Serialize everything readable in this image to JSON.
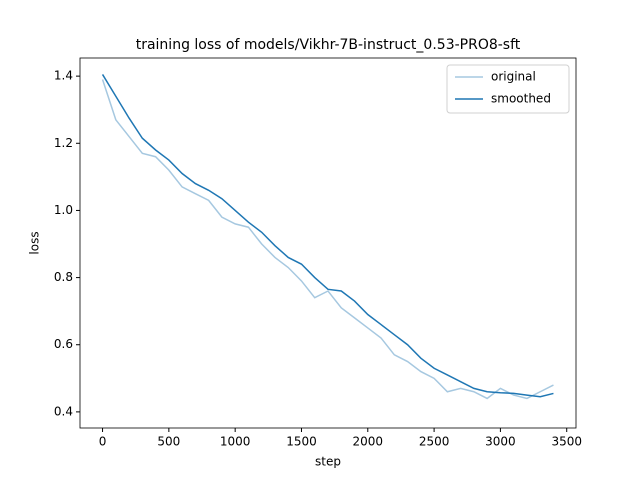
{
  "chart_data": {
    "type": "line",
    "title": "training loss of models/Vikhr-7B-instruct_0.53-PRO8-sft",
    "xlabel": "step",
    "ylabel": "loss",
    "x": [
      0,
      100,
      200,
      300,
      400,
      500,
      600,
      700,
      800,
      900,
      1000,
      1100,
      1200,
      1300,
      1400,
      1500,
      1600,
      1700,
      1800,
      1900,
      2000,
      2100,
      2200,
      2300,
      2400,
      2500,
      2600,
      2700,
      2800,
      2900,
      3000,
      3100,
      3200,
      3300,
      3400
    ],
    "series": [
      {
        "name": "original",
        "color": "#a6c8e0",
        "values": [
          1.39,
          1.27,
          1.22,
          1.17,
          1.16,
          1.12,
          1.07,
          1.05,
          1.03,
          0.98,
          0.96,
          0.95,
          0.9,
          0.86,
          0.83,
          0.79,
          0.74,
          0.76,
          0.71,
          0.68,
          0.65,
          0.62,
          0.57,
          0.55,
          0.52,
          0.5,
          0.46,
          0.47,
          0.46,
          0.44,
          0.47,
          0.45,
          0.44,
          0.46,
          0.48
        ]
      },
      {
        "name": "smoothed",
        "color": "#1f77b4",
        "values": [
          1.405,
          1.34,
          1.275,
          1.215,
          1.18,
          1.15,
          1.11,
          1.08,
          1.06,
          1.035,
          1.0,
          0.965,
          0.935,
          0.895,
          0.86,
          0.84,
          0.8,
          0.765,
          0.76,
          0.73,
          0.69,
          0.66,
          0.63,
          0.6,
          0.56,
          0.53,
          0.51,
          0.49,
          0.47,
          0.46,
          0.457,
          0.455,
          0.45,
          0.445,
          0.455
        ]
      }
    ],
    "xlim": [
      -170,
      3570
    ],
    "ylim": [
      0.352,
      1.454
    ],
    "xticks": [
      0,
      500,
      1000,
      1500,
      2000,
      2500,
      3000,
      3500
    ],
    "yticks": [
      0.4,
      0.6,
      0.8,
      {
        "value": 1,
        "label": "1.0"
      },
      1.2,
      1.4
    ],
    "grid": false,
    "legend": "upper right"
  }
}
